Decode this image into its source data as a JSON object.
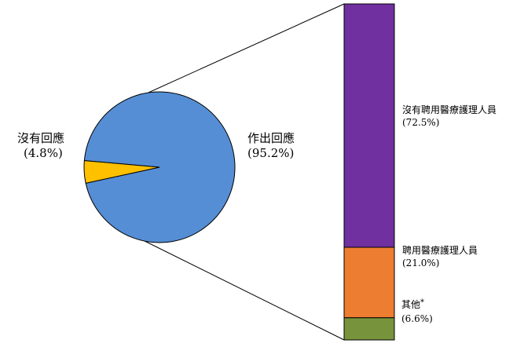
{
  "chart_data": {
    "type": "pie",
    "subtype": "bar-of-pie",
    "pie": {
      "slices": [
        {
          "label": "作出回應",
          "value": 95.2,
          "value_label": "(95.2%)",
          "color": "#558ED5"
        },
        {
          "label": "沒有回應",
          "value": 4.8,
          "value_label": "(4.8%)",
          "color": "#FFC000"
        }
      ]
    },
    "bar": {
      "breakdown_of": "作出回應",
      "segments": [
        {
          "label": "沒有聘用醫療護理人員",
          "value": 72.5,
          "value_label": "(72.5%)",
          "color": "#7030A0"
        },
        {
          "label": "聘用醫療護理人員",
          "value": 21.0,
          "value_label": "(21.0%)",
          "color": "#ED7D31"
        },
        {
          "label": "其他",
          "footnote_mark": "*",
          "value": 6.6,
          "value_label": "(6.6%)",
          "color": "#77933C"
        }
      ]
    },
    "legend": "none"
  }
}
